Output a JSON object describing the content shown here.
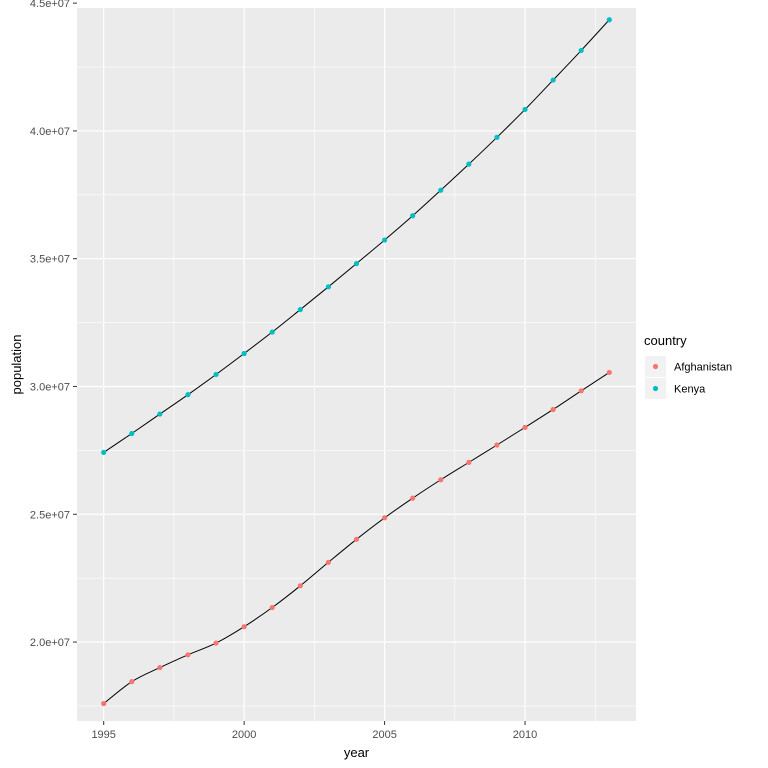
{
  "chart_data": {
    "type": "line",
    "xlabel": "year",
    "ylabel": "population",
    "xlim": [
      1994.05,
      2013.95
    ],
    "ylim": [
      16910000,
      44810000
    ],
    "x_ticks": [
      1995,
      2000,
      2005,
      2010
    ],
    "x_tick_labels": [
      "1995",
      "2000",
      "2005",
      "2010"
    ],
    "y_ticks": [
      20000000,
      25000000,
      30000000,
      35000000,
      40000000,
      45000000
    ],
    "y_tick_labels": [
      "2.0e+07",
      "2.5e+07",
      "3.0e+07",
      "3.5e+07",
      "4.0e+07",
      "4.5e+07"
    ],
    "grid": true,
    "legend": {
      "title": "country",
      "placement": "right"
    },
    "x": [
      1995,
      1996,
      1997,
      1998,
      1999,
      2000,
      2001,
      2002,
      2003,
      2004,
      2005,
      2006,
      2007,
      2008,
      2009,
      2010,
      2011,
      2012,
      2013
    ],
    "series": [
      {
        "name": "Afghanistan",
        "color": "#F8766D",
        "values": [
          17590000,
          18450000,
          19000000,
          19500000,
          19960000,
          20600000,
          21350000,
          22200000,
          23120000,
          24020000,
          24860000,
          25630000,
          26350000,
          27030000,
          27710000,
          28400000,
          29100000,
          29830000,
          30550000
        ]
      },
      {
        "name": "Kenya",
        "color": "#00BFC4",
        "values": [
          27420000,
          28160000,
          28920000,
          29680000,
          30470000,
          31290000,
          32130000,
          33010000,
          33900000,
          34810000,
          35730000,
          36680000,
          37680000,
          38700000,
          39750000,
          40840000,
          41990000,
          43150000,
          44350000
        ]
      }
    ]
  }
}
